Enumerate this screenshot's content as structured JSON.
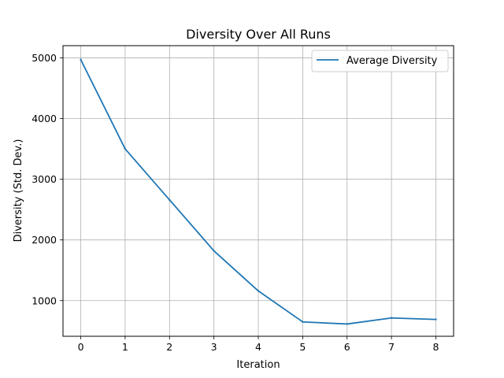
{
  "chart_data": {
    "type": "line",
    "title": "Diversity Over All Runs",
    "xlabel": "Iteration",
    "ylabel": "Diversity (Std. Dev.)",
    "x": [
      0,
      1,
      2,
      3,
      4,
      5,
      6,
      7,
      8
    ],
    "series": [
      {
        "name": "Average Diversity",
        "color": "#1f77b4",
        "values": [
          4970,
          3500,
          2660,
          1820,
          1160,
          650,
          615,
          715,
          690
        ]
      }
    ],
    "xticks": [
      0,
      1,
      2,
      3,
      4,
      5,
      6,
      7,
      8
    ],
    "yticks": [
      1000,
      2000,
      3000,
      4000,
      5000
    ],
    "xlim": [
      -0.4,
      8.4
    ],
    "ylim": [
      413,
      5200
    ],
    "grid": true,
    "legend": "top-right"
  }
}
